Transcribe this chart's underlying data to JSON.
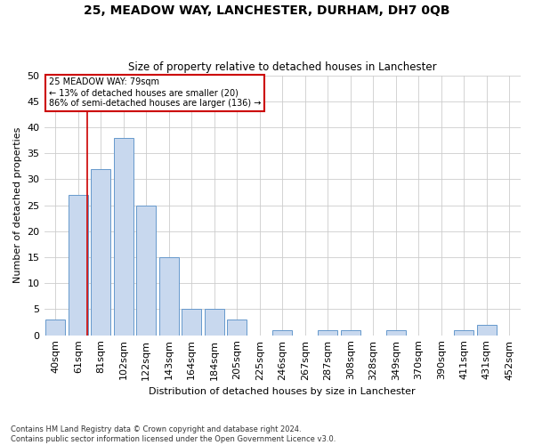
{
  "title": "25, MEADOW WAY, LANCHESTER, DURHAM, DH7 0QB",
  "subtitle": "Size of property relative to detached houses in Lanchester",
  "xlabel": "Distribution of detached houses by size in Lanchester",
  "ylabel": "Number of detached properties",
  "footnote1": "Contains HM Land Registry data © Crown copyright and database right 2024.",
  "footnote2": "Contains public sector information licensed under the Open Government Licence v3.0.",
  "categories": [
    "40sqm",
    "61sqm",
    "81sqm",
    "102sqm",
    "122sqm",
    "143sqm",
    "164sqm",
    "184sqm",
    "205sqm",
    "225sqm",
    "246sqm",
    "267sqm",
    "287sqm",
    "308sqm",
    "328sqm",
    "349sqm",
    "370sqm",
    "390sqm",
    "411sqm",
    "431sqm",
    "452sqm"
  ],
  "values": [
    3,
    27,
    32,
    38,
    25,
    15,
    5,
    5,
    3,
    0,
    1,
    0,
    1,
    1,
    0,
    1,
    0,
    0,
    1,
    2,
    0
  ],
  "bar_color": "#c8d8ee",
  "bar_edge_color": "#6699cc",
  "grid_color": "#cccccc",
  "background_color": "#ffffff",
  "annotation_line1": "25 MEADOW WAY: 79sqm",
  "annotation_line2": "← 13% of detached houses are smaller (20)",
  "annotation_line3": "86% of semi-detached houses are larger (136) →",
  "annotation_box_color": "#ffffff",
  "annotation_box_edge_color": "#cc0000",
  "vline_color": "#cc0000",
  "ylim": [
    0,
    50
  ],
  "yticks": [
    0,
    5,
    10,
    15,
    20,
    25,
    30,
    35,
    40,
    45,
    50
  ]
}
